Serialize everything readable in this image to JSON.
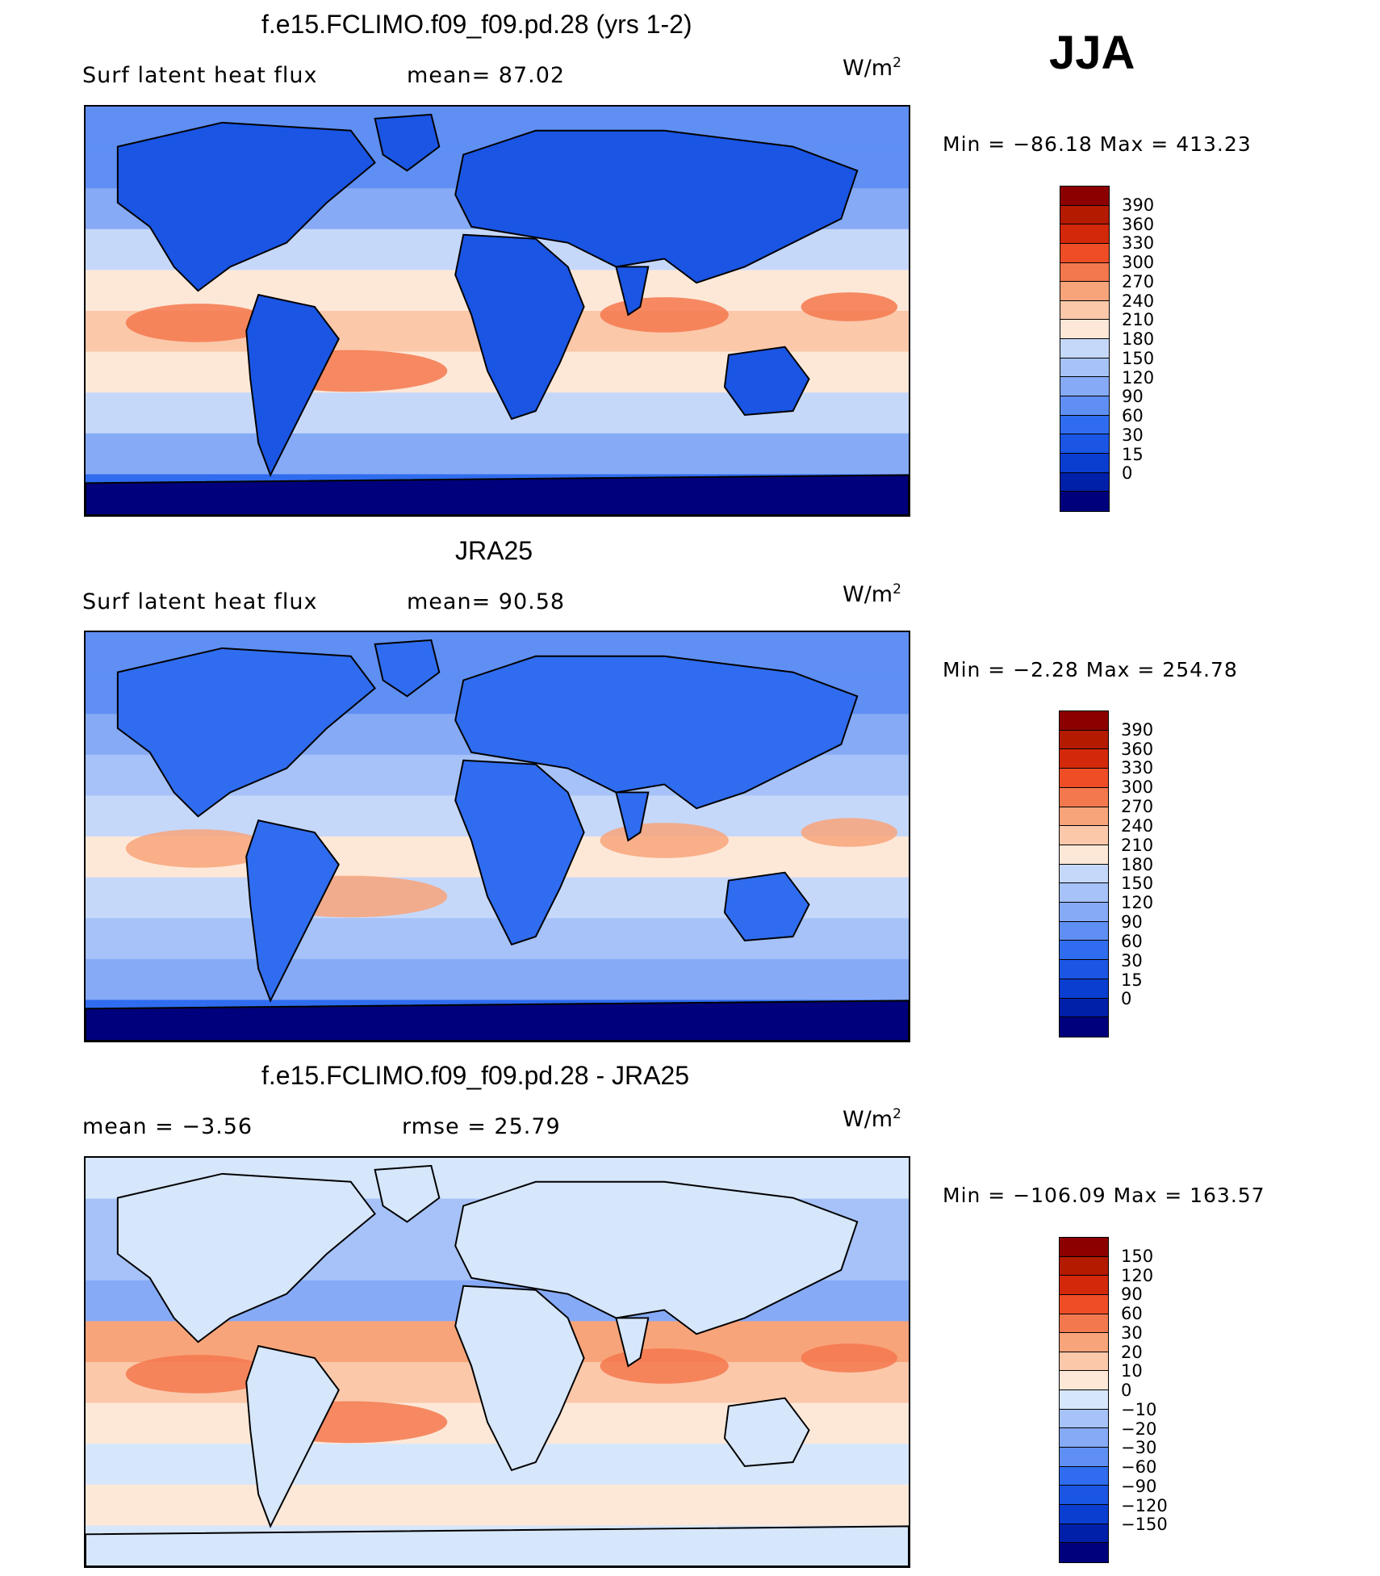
{
  "season": "JJA",
  "units_prefix": "W/m",
  "units_exp": "2",
  "palettes": {
    "flux": [
      "#00007c",
      "#0020aa",
      "#0a3ed0",
      "#1a55e4",
      "#2f6cef",
      "#5f8ff3",
      "#86aaf6",
      "#a6c2f8",
      "#c6d8fa",
      "#fde8d8",
      "#fbc8aa",
      "#f8a47a",
      "#f4784e",
      "#ee4d26",
      "#d4280a",
      "#b41a00",
      "#8c0000"
    ],
    "diff": [
      "#00007c",
      "#0020aa",
      "#0a3ed0",
      "#1a55e4",
      "#2f6cef",
      "#5f8ff3",
      "#86aaf6",
      "#a6c2f8",
      "#d6e6fb",
      "#fde8d8",
      "#fbc8aa",
      "#f8a47a",
      "#f4784e",
      "#ee4d26",
      "#d4280a",
      "#b41a00",
      "#8c0000"
    ]
  },
  "panels": [
    {
      "title": "f.e15.FCLIMO.f09_f09.pd.28 (yrs 1-2)",
      "left_label": "Surf  latent  heat  flux",
      "right_label": "mean=   87.02",
      "minmax": "Min  =  −86.18  Max  =  413.23",
      "palette": "flux",
      "cb_labels": [
        "390",
        "360",
        "330",
        "300",
        "270",
        "240",
        "210",
        "180",
        "150",
        "120",
        "90",
        "60",
        "30",
        "15",
        "0"
      ],
      "ocean_levels": [
        5,
        5,
        6,
        8,
        9,
        10,
        9,
        8,
        6,
        4
      ],
      "land_color": "#1a55e4"
    },
    {
      "title": "JRA25",
      "left_label": "Surf  latent  heat  flux",
      "right_label": "mean=   90.58",
      "minmax": "Min  =    −2.28  Max  =  254.78",
      "palette": "flux",
      "cb_labels": [
        "390",
        "360",
        "330",
        "300",
        "270",
        "240",
        "210",
        "180",
        "150",
        "120",
        "90",
        "60",
        "30",
        "15",
        "0"
      ],
      "ocean_levels": [
        5,
        5,
        6,
        7,
        8,
        9,
        8,
        7,
        6,
        4
      ],
      "land_color": "#2f6cef"
    },
    {
      "title": "f.e15.FCLIMO.f09_f09.pd.28 - JRA25",
      "left_label": "mean  =    −3.56",
      "right_label": "rmse  =    25.79",
      "minmax": "Min  =  −106.09  Max  =  163.57",
      "palette": "diff",
      "cb_labels": [
        "150",
        "120",
        "90",
        "60",
        "30",
        "20",
        "10",
        "0",
        "−10",
        "−20",
        "−30",
        "−60",
        "−90",
        "−120",
        "−150"
      ],
      "ocean_levels": [
        8,
        7,
        7,
        6,
        11,
        10,
        9,
        8,
        9,
        8
      ],
      "land_color": "#d6e6fb"
    }
  ]
}
